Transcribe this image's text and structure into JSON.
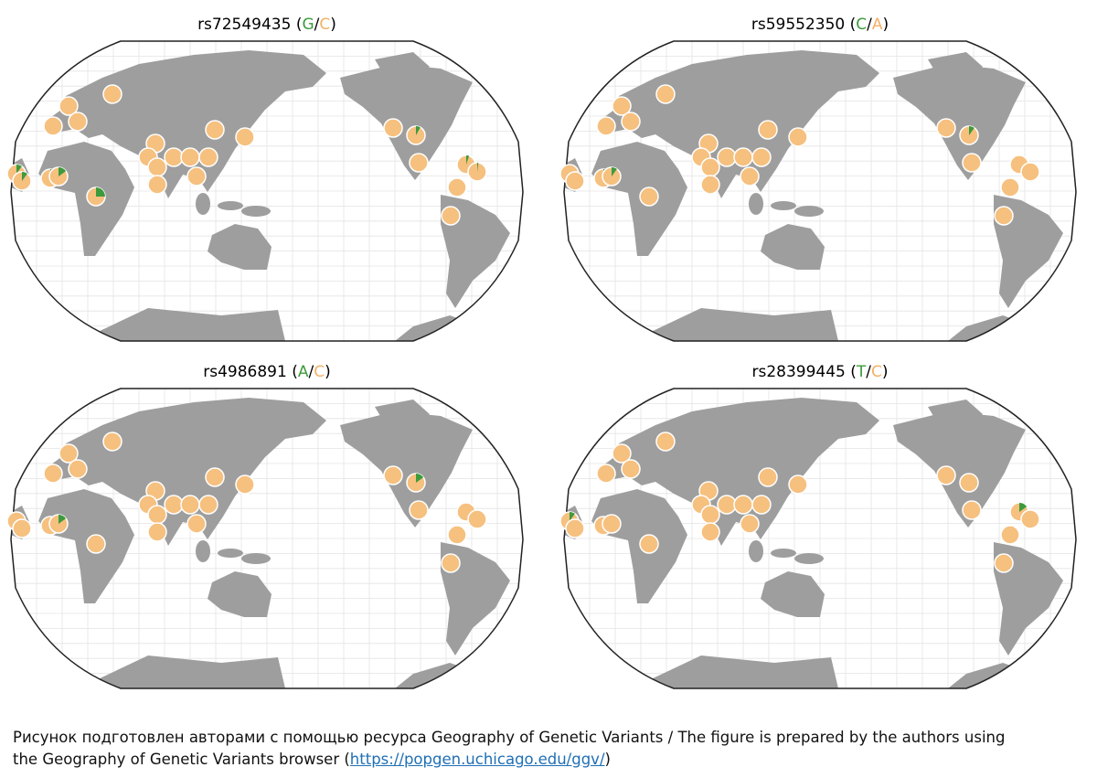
{
  "maps": [
    {
      "title_parts": [
        "rs72549435 (",
        "G",
        "/",
        "C",
        ")"
      ],
      "frequencies": [
        0,
        0,
        0,
        0,
        0.1,
        0.1,
        0.05,
        0.15,
        0.25,
        0,
        0.08,
        0,
        0.05,
        0.02,
        0,
        0,
        0,
        0,
        0,
        0,
        0,
        0,
        0,
        0,
        0,
        0
      ]
    },
    {
      "title_parts": [
        "rs59552350 (",
        "C",
        "/",
        "A",
        ")"
      ],
      "frequencies": [
        0,
        0,
        0,
        0,
        0,
        0,
        0.05,
        0.1,
        0,
        0,
        0.1,
        0,
        0,
        0,
        0,
        0,
        0,
        0,
        0,
        0,
        0,
        0,
        0,
        0,
        0,
        0
      ]
    },
    {
      "title_parts": [
        "rs4986891 (",
        "A",
        "/",
        "C",
        ")"
      ],
      "frequencies": [
        0,
        0,
        0,
        0,
        0,
        0,
        0,
        0.15,
        0,
        0,
        0.15,
        0,
        0,
        0,
        0,
        0,
        0,
        0,
        0,
        0,
        0,
        0,
        0,
        0,
        0,
        0
      ]
    },
    {
      "title_parts": [
        "rs28399445 (",
        "T",
        "/",
        "C",
        ")"
      ],
      "frequencies": [
        0,
        0,
        0,
        0,
        0.1,
        0,
        0,
        0,
        0,
        0,
        0,
        0,
        0.15,
        0,
        0,
        0,
        0,
        0,
        0,
        0,
        0,
        0,
        0,
        0,
        0,
        0
      ]
    }
  ],
  "allele_colors": [
    "#3d9a3d",
    "#f5b064"
  ],
  "marker_color": "#f6c07f",
  "caption": {
    "line1": "Рисунок подготовлен авторами с помощью ресурса Geography of Genetic Variants / The figure is prepared by the authors using",
    "line2": "the Geography of Genetic Variants browser (",
    "link": "https://popgen.uchicago.edu/ggv/",
    "close": ")"
  }
}
